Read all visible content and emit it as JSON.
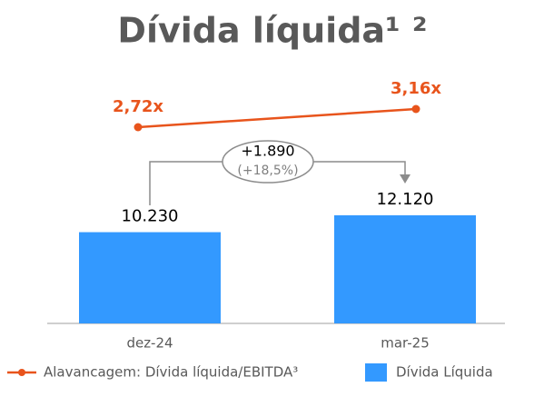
{
  "chart_data": {
    "type": "combo",
    "title": "Dívida líquida¹ ²",
    "categories": [
      "dez-24",
      "mar-25"
    ],
    "series": [
      {
        "name": "Dívida Líquida",
        "type": "bar",
        "color": "#3399ff",
        "values": [
          10230,
          12120
        ],
        "value_labels": [
          "10.230",
          "12.120"
        ]
      },
      {
        "name": "Alavancagem: Dívida líquida/EBITDA³",
        "type": "line",
        "color": "#e8541c",
        "values": [
          2.72,
          3.16
        ],
        "value_labels": [
          "2,72x",
          "3,16x"
        ]
      }
    ],
    "annotation": {
      "change": "+1.890",
      "change_pct": "(+18,5%)"
    },
    "legend": "bottom"
  }
}
